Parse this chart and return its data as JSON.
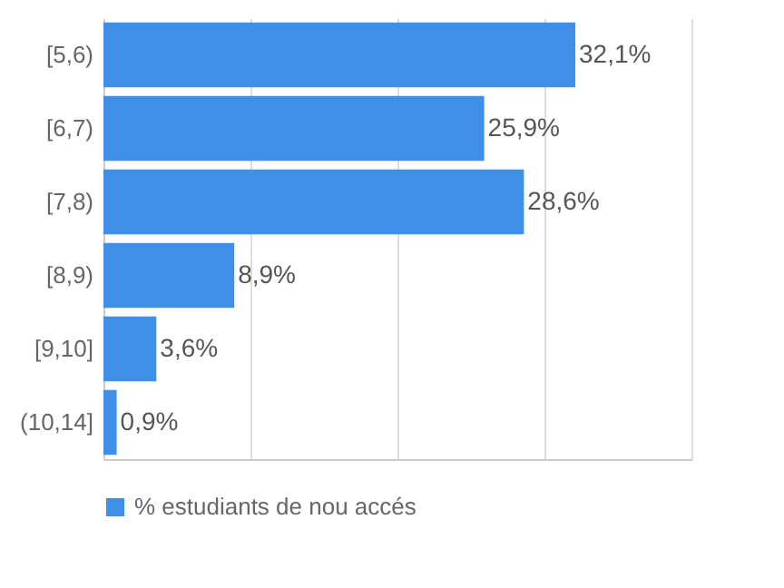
{
  "chart_data": {
    "type": "bar",
    "orientation": "horizontal",
    "categories": [
      "[5,6)",
      "[6,7)",
      "[7,8)",
      "[8,9)",
      "[9,10]",
      "(10,14]"
    ],
    "series": [
      {
        "name": "% estudiants de nou accés",
        "color": "#3f8fe8",
        "values": [
          32.1,
          25.9,
          28.6,
          8.9,
          3.6,
          0.9
        ],
        "value_labels": [
          "32,1%",
          "25,9%",
          "28,6%",
          "8,9%",
          "3,6%",
          "0,9%"
        ]
      }
    ],
    "xlim": [
      0,
      40
    ],
    "xticks": [
      {
        "value": 0,
        "label": null
      },
      {
        "value": 10,
        "label": null
      },
      {
        "value": 20,
        "label": null
      },
      {
        "value": 30,
        "label": null
      },
      {
        "value": 40,
        "label": null
      }
    ],
    "grid": "x",
    "tick_labels": "y",
    "legend": "bottom"
  }
}
